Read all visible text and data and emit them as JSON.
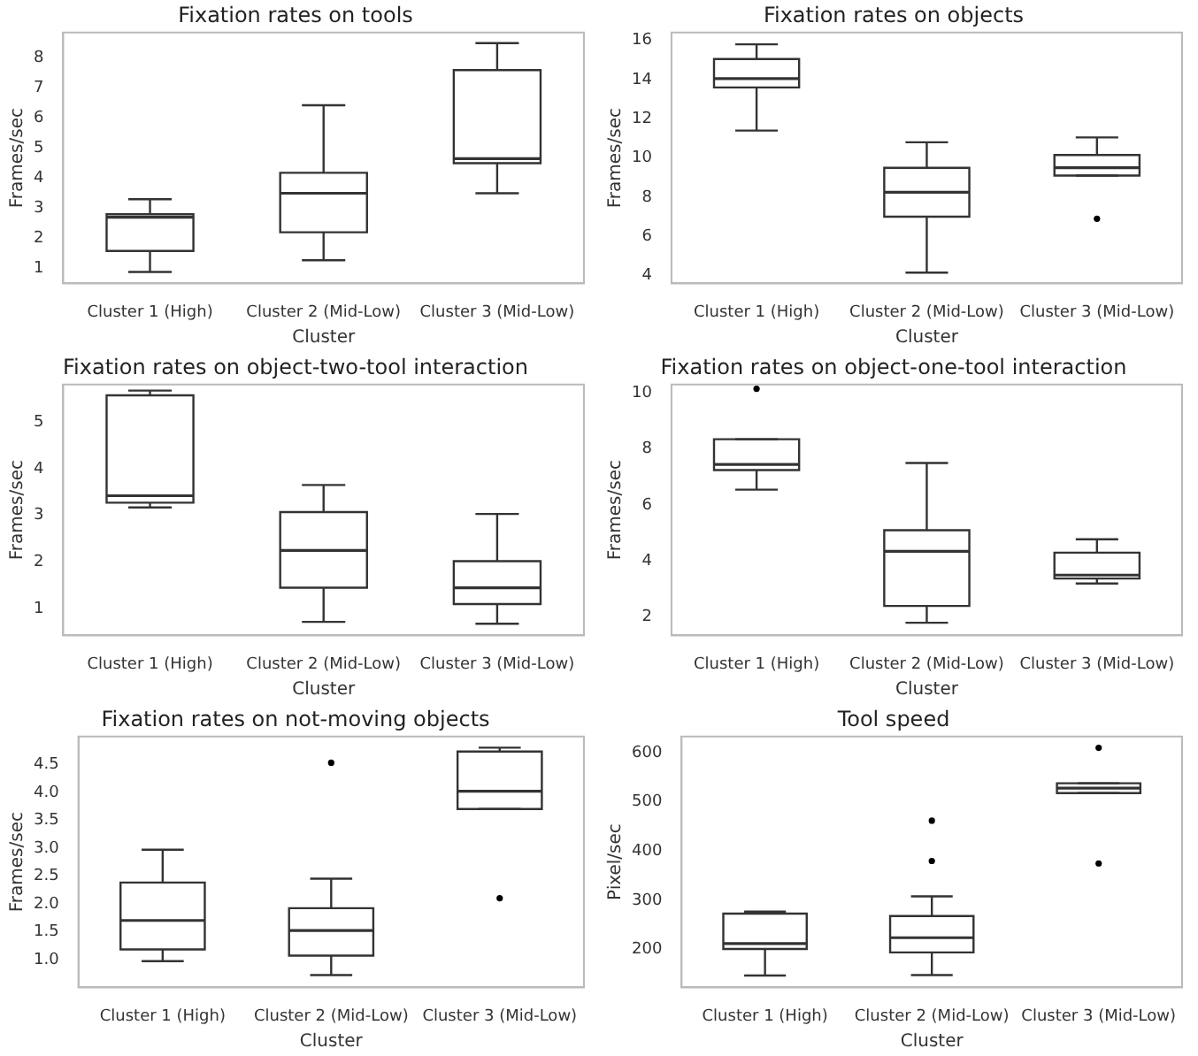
{
  "chart_data": [
    {
      "type": "box",
      "title": "Fixation rates on tools",
      "xlabel": "Cluster",
      "ylabel": "Frames/sec",
      "categories": [
        "Cluster 1 (High)",
        "Cluster 2 (Mid-Low)",
        "Cluster 3 (Mid-Low)"
      ],
      "color": "#333333",
      "grid": false,
      "ylim": [
        0.5,
        8.85
      ],
      "yticks": [
        1,
        2,
        3,
        4,
        5,
        6,
        7,
        8
      ],
      "boxes": [
        {
          "low": 0.88,
          "q1": 1.58,
          "median": 2.7,
          "q3": 2.8,
          "high": 3.3
        },
        {
          "low": 1.27,
          "q1": 2.2,
          "median": 3.5,
          "q3": 4.18,
          "high": 6.43
        },
        {
          "low": 3.5,
          "q1": 4.5,
          "median": 4.65,
          "q3": 7.6,
          "high": 8.5
        }
      ]
    },
    {
      "type": "box",
      "title": "Fixation rates on objects",
      "xlabel": "Cluster",
      "ylabel": "Frames/sec",
      "categories": [
        "Cluster 1 (High)",
        "Cluster 2 (Mid-Low)",
        "Cluster 3 (Mid-Low)"
      ],
      "color": "#333333",
      "grid": false,
      "ylim": [
        3.6,
        16.4
      ],
      "yticks": [
        4,
        6,
        8,
        10,
        12,
        14,
        16
      ],
      "boxes": [
        {
          "low": 11.4,
          "q1": 13.6,
          "median": 14.05,
          "q3": 15.05,
          "high": 15.8
        },
        {
          "low": 4.15,
          "q1": 7.0,
          "median": 8.25,
          "q3": 9.5,
          "high": 10.8
        },
        {
          "low": 9.1,
          "q1": 9.1,
          "median": 9.5,
          "q3": 10.15,
          "high": 11.05,
          "outliers": [
            6.9
          ]
        }
      ]
    },
    {
      "type": "box",
      "title": "Fixation rates on object-two-tool interaction",
      "xlabel": "Cluster",
      "ylabel": "Frames/sec",
      "categories": [
        "Cluster 1 (High)",
        "Cluster 2 (Mid-Low)",
        "Cluster 3 (Mid-Low)"
      ],
      "color": "#333333",
      "grid": false,
      "ylim": [
        0.43,
        5.8
      ],
      "yticks": [
        1,
        2,
        3,
        4,
        5
      ],
      "boxes": [
        {
          "low": 3.17,
          "q1": 3.27,
          "median": 3.42,
          "q3": 5.57,
          "high": 5.67
        },
        {
          "low": 0.72,
          "q1": 1.45,
          "median": 2.25,
          "q3": 3.07,
          "high": 3.65
        },
        {
          "low": 0.68,
          "q1": 1.1,
          "median": 1.45,
          "q3": 2.02,
          "high": 3.03
        }
      ]
    },
    {
      "type": "box",
      "title": "Fixation rates on object-one-tool interaction",
      "xlabel": "Cluster",
      "ylabel": "Frames/sec",
      "categories": [
        "Cluster 1 (High)",
        "Cluster 2 (Mid-Low)",
        "Cluster 3 (Mid-Low)"
      ],
      "color": "#333333",
      "grid": false,
      "ylim": [
        1.35,
        10.3
      ],
      "yticks": [
        2,
        4,
        6,
        8,
        10
      ],
      "boxes": [
        {
          "low": 6.55,
          "q1": 7.25,
          "median": 7.45,
          "q3": 8.35,
          "high": 8.35,
          "outliers": [
            10.15
          ]
        },
        {
          "low": 1.8,
          "q1": 2.4,
          "median": 4.35,
          "q3": 5.1,
          "high": 7.5
        },
        {
          "low": 3.2,
          "q1": 3.38,
          "median": 3.5,
          "q3": 4.3,
          "high": 4.78
        }
      ]
    },
    {
      "type": "box",
      "title": "Fixation rates on not-moving objects",
      "xlabel": "Cluster",
      "ylabel": "Frames/sec",
      "categories": [
        "Cluster 1 (High)",
        "Cluster 2 (Mid-Low)",
        "Cluster 3 (Mid-Low)"
      ],
      "color": "#333333",
      "grid": false,
      "ylim": [
        0.5,
        5.0
      ],
      "yticks": [
        {
          "value": 1,
          "label": "1.0"
        },
        {
          "value": 1.5,
          "label": "1.5"
        },
        {
          "value": 2,
          "label": "2.0"
        },
        {
          "value": 2.5,
          "label": "2.5"
        },
        {
          "value": 3,
          "label": "3.0"
        },
        {
          "value": 3.5,
          "label": "3.5"
        },
        {
          "value": 4,
          "label": "4.0"
        },
        {
          "value": 4.5,
          "label": "4.5"
        }
      ],
      "boxes": [
        {
          "low": 0.97,
          "q1": 1.18,
          "median": 1.7,
          "q3": 2.38,
          "high": 2.97
        },
        {
          "low": 0.72,
          "q1": 1.07,
          "median": 1.52,
          "q3": 1.92,
          "high": 2.45,
          "outliers": [
            4.53
          ]
        },
        {
          "low": 3.7,
          "q1": 3.7,
          "median": 4.02,
          "q3": 4.73,
          "high": 4.8,
          "outliers": [
            2.1
          ]
        }
      ]
    },
    {
      "type": "box",
      "title": "Tool speed",
      "xlabel": "Cluster",
      "ylabel": "Pixel/sec",
      "categories": [
        "Cluster 1 (High)",
        "Cluster 2 (Mid-Low)",
        "Cluster 3 (Mid-Low)"
      ],
      "color": "#333333",
      "grid": false,
      "ylim": [
        123,
        633
      ],
      "yticks": [
        200,
        300,
        400,
        500,
        600
      ],
      "boxes": [
        {
          "low": 147,
          "q1": 201,
          "median": 212,
          "q3": 273,
          "high": 277
        },
        {
          "low": 148,
          "q1": 194,
          "median": 224,
          "q3": 268,
          "high": 308,
          "outliers": [
            380,
            462
          ]
        },
        {
          "low": 518,
          "q1": 518,
          "median": 528,
          "q3": 538,
          "high": 538,
          "outliers": [
            610,
            375
          ]
        }
      ]
    }
  ]
}
